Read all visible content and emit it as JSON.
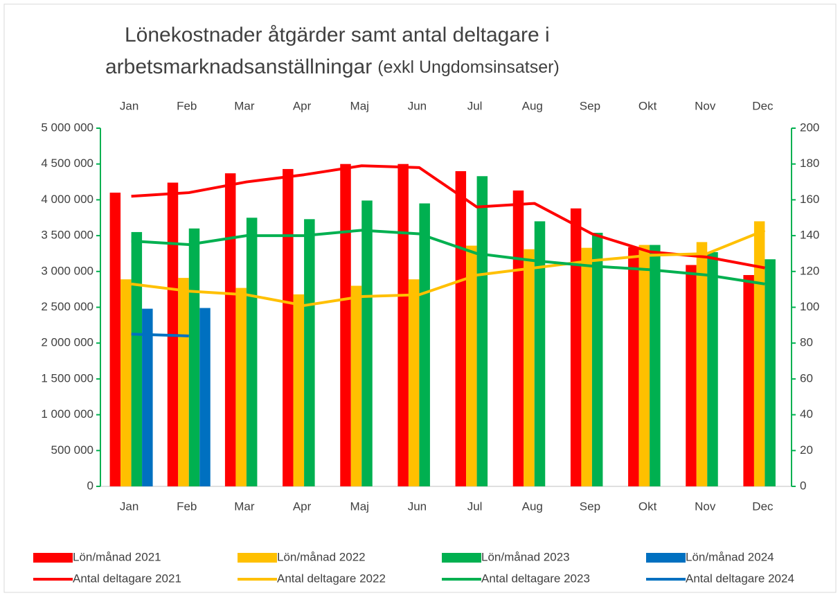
{
  "chart_data": {
    "type": "bar",
    "title": "Lönekostnader åtgärder samt antal deltagare i",
    "title_line2": "arbetsmarknadsanställningar",
    "subtitle": "(exkl Ungdomsinsatser)",
    "categories": [
      "Jan",
      "Feb",
      "Mar",
      "Apr",
      "Maj",
      "Jun",
      "Jul",
      "Aug",
      "Sep",
      "Okt",
      "Nov",
      "Dec"
    ],
    "ylim": [
      0,
      5000000
    ],
    "yticks": [
      {
        "value": 0,
        "label": "0"
      },
      {
        "value": 500000,
        "label": "500 000"
      },
      {
        "value": 1000000,
        "label": "1 000 000"
      },
      {
        "value": 1500000,
        "label": "1 500 000"
      },
      {
        "value": 2000000,
        "label": "2 000 000"
      },
      {
        "value": 2500000,
        "label": "2 500 000"
      },
      {
        "value": 3000000,
        "label": "3 000 000"
      },
      {
        "value": 3500000,
        "label": "3 500 000"
      },
      {
        "value": 4000000,
        "label": "4 000 000"
      },
      {
        "value": 4500000,
        "label": "4 500 000"
      },
      {
        "value": 5000000,
        "label": "5 000 000"
      }
    ],
    "y2lim": [
      0,
      200
    ],
    "y2ticks": [
      0,
      20,
      40,
      60,
      80,
      100,
      120,
      140,
      160,
      180,
      200
    ],
    "axis_color": "#00b050",
    "legend": "bottom",
    "series": [
      {
        "name": "Lön/månad 2021",
        "type": "bar",
        "color": "#ff0000",
        "values": [
          4100000,
          4240000,
          4370000,
          4430000,
          4500000,
          4500000,
          4400000,
          4130000,
          3880000,
          3340000,
          3090000,
          2950000
        ]
      },
      {
        "name": "Lön/månad 2022",
        "type": "bar",
        "color": "#ffc000",
        "values": [
          2890000,
          2910000,
          2770000,
          2680000,
          2800000,
          2890000,
          3360000,
          3310000,
          3330000,
          3370000,
          3410000,
          3700000
        ]
      },
      {
        "name": "Lön/månad 2023",
        "type": "bar",
        "color": "#00b050",
        "values": [
          3550000,
          3600000,
          3750000,
          3730000,
          3990000,
          3950000,
          4330000,
          3700000,
          3540000,
          3370000,
          3270000,
          3170000
        ]
      },
      {
        "name": "Lön/månad 2024",
        "type": "bar",
        "color": "#0070c0",
        "values": [
          2480000,
          2490000,
          null,
          null,
          null,
          null,
          null,
          null,
          null,
          null,
          null,
          null
        ]
      },
      {
        "name": "Antal deltagare 2021",
        "type": "line",
        "axis": "y2",
        "color": "#ff0000",
        "values": [
          162,
          164,
          170,
          174,
          179,
          178,
          156,
          158,
          141,
          131,
          128,
          122
        ]
      },
      {
        "name": "Antal deltagare 2022",
        "type": "line",
        "axis": "y2",
        "color": "#ffc000",
        "values": [
          113,
          109,
          107,
          101,
          106,
          107,
          118,
          122,
          126,
          129,
          130,
          143
        ]
      },
      {
        "name": "Antal deltagare 2023",
        "type": "line",
        "axis": "y2",
        "color": "#00b050",
        "values": [
          137,
          135,
          140,
          140,
          143,
          141,
          130,
          126,
          123,
          121,
          118,
          113
        ]
      },
      {
        "name": "Antal deltagare 2024",
        "type": "line",
        "axis": "y2",
        "color": "#0070c0",
        "values": [
          85,
          84,
          null,
          null,
          null,
          null,
          null,
          null,
          null,
          null,
          null,
          null
        ]
      }
    ]
  }
}
